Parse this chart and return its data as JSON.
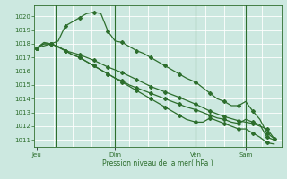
{
  "background_color": "#cce8e0",
  "grid_color": "#aad4cc",
  "line_color": "#2d6e2d",
  "marker_color": "#2d6e2d",
  "xlabel_text": "Pression niveau de la mer( hPa )",
  "ylim": [
    1010.5,
    1020.8
  ],
  "yticks": [
    1011,
    1012,
    1013,
    1014,
    1015,
    1016,
    1017,
    1018,
    1019,
    1020
  ],
  "day_labels": [
    "Jeu",
    "Dim",
    "Ven",
    "Sam"
  ],
  "day_positions": [
    0.0,
    0.33,
    0.67,
    0.88
  ],
  "vline_positions": [
    0.08,
    0.33,
    0.67,
    0.88
  ],
  "series": [
    {
      "x": [
        0.0,
        0.03,
        0.06,
        0.09,
        0.12,
        0.15,
        0.18,
        0.21,
        0.24,
        0.27,
        0.3,
        0.33,
        0.36,
        0.39,
        0.42,
        0.45,
        0.48,
        0.51,
        0.54,
        0.57,
        0.6,
        0.63,
        0.67,
        0.7,
        0.73,
        0.76,
        0.79,
        0.82,
        0.85,
        0.88,
        0.91,
        0.94,
        0.97,
        1.0
      ],
      "y": [
        1017.7,
        1018.1,
        1018.0,
        1018.2,
        1019.3,
        1019.6,
        1019.9,
        1020.2,
        1020.3,
        1020.2,
        1018.9,
        1018.2,
        1018.1,
        1017.8,
        1017.5,
        1017.3,
        1017.0,
        1016.7,
        1016.4,
        1016.1,
        1015.8,
        1015.5,
        1015.2,
        1014.8,
        1014.4,
        1014.0,
        1013.8,
        1013.5,
        1013.5,
        1013.8,
        1013.1,
        1012.5,
        1011.5,
        1011.1
      ]
    },
    {
      "x": [
        0.0,
        0.03,
        0.06,
        0.09,
        0.12,
        0.15,
        0.18,
        0.21,
        0.24,
        0.27,
        0.3,
        0.33,
        0.36,
        0.39,
        0.42,
        0.45,
        0.48,
        0.51,
        0.54,
        0.57,
        0.6,
        0.63,
        0.67,
        0.7,
        0.73,
        0.76,
        0.79,
        0.82,
        0.85,
        0.88,
        0.91,
        0.94,
        0.97,
        1.0
      ],
      "y": [
        1017.7,
        1018.0,
        1018.0,
        1017.8,
        1017.5,
        1017.2,
        1017.0,
        1016.7,
        1016.4,
        1016.1,
        1015.8,
        1015.5,
        1015.3,
        1015.0,
        1014.8,
        1014.6,
        1014.4,
        1014.2,
        1014.0,
        1013.8,
        1013.6,
        1013.4,
        1013.2,
        1013.0,
        1012.8,
        1012.6,
        1012.5,
        1012.3,
        1012.2,
        1012.5,
        1012.3,
        1012.1,
        1011.2,
        1011.0
      ]
    },
    {
      "x": [
        0.0,
        0.03,
        0.06,
        0.09,
        0.12,
        0.15,
        0.18,
        0.21,
        0.24,
        0.27,
        0.3,
        0.33,
        0.36,
        0.39,
        0.42,
        0.45,
        0.48,
        0.51,
        0.54,
        0.57,
        0.6,
        0.63,
        0.67,
        0.7,
        0.73,
        0.76,
        0.79,
        0.82,
        0.85,
        0.88,
        0.91,
        0.94,
        0.97,
        1.0
      ],
      "y": [
        1017.7,
        1018.0,
        1018.0,
        1017.8,
        1017.5,
        1017.2,
        1017.0,
        1016.7,
        1016.4,
        1016.1,
        1015.8,
        1015.5,
        1015.2,
        1014.9,
        1014.6,
        1014.3,
        1014.0,
        1013.7,
        1013.4,
        1013.1,
        1012.8,
        1012.5,
        1012.3,
        1012.3,
        1012.6,
        1012.4,
        1012.2,
        1012.0,
        1011.8,
        1011.8,
        1011.5,
        1011.2,
        1010.8,
        1010.7
      ]
    },
    {
      "x": [
        0.0,
        0.06,
        0.12,
        0.18,
        0.24,
        0.3,
        0.36,
        0.42,
        0.48,
        0.54,
        0.6,
        0.67,
        0.73,
        0.79,
        0.85,
        0.91,
        0.97,
        1.0
      ],
      "y": [
        1017.7,
        1018.0,
        1017.5,
        1017.2,
        1016.8,
        1016.3,
        1015.9,
        1015.4,
        1014.9,
        1014.5,
        1014.1,
        1013.6,
        1013.1,
        1012.7,
        1012.4,
        1012.2,
        1011.8,
        1011.1
      ]
    }
  ],
  "xmin": -0.01,
  "xmax": 1.03,
  "figsize": [
    3.2,
    2.0
  ],
  "dpi": 100
}
